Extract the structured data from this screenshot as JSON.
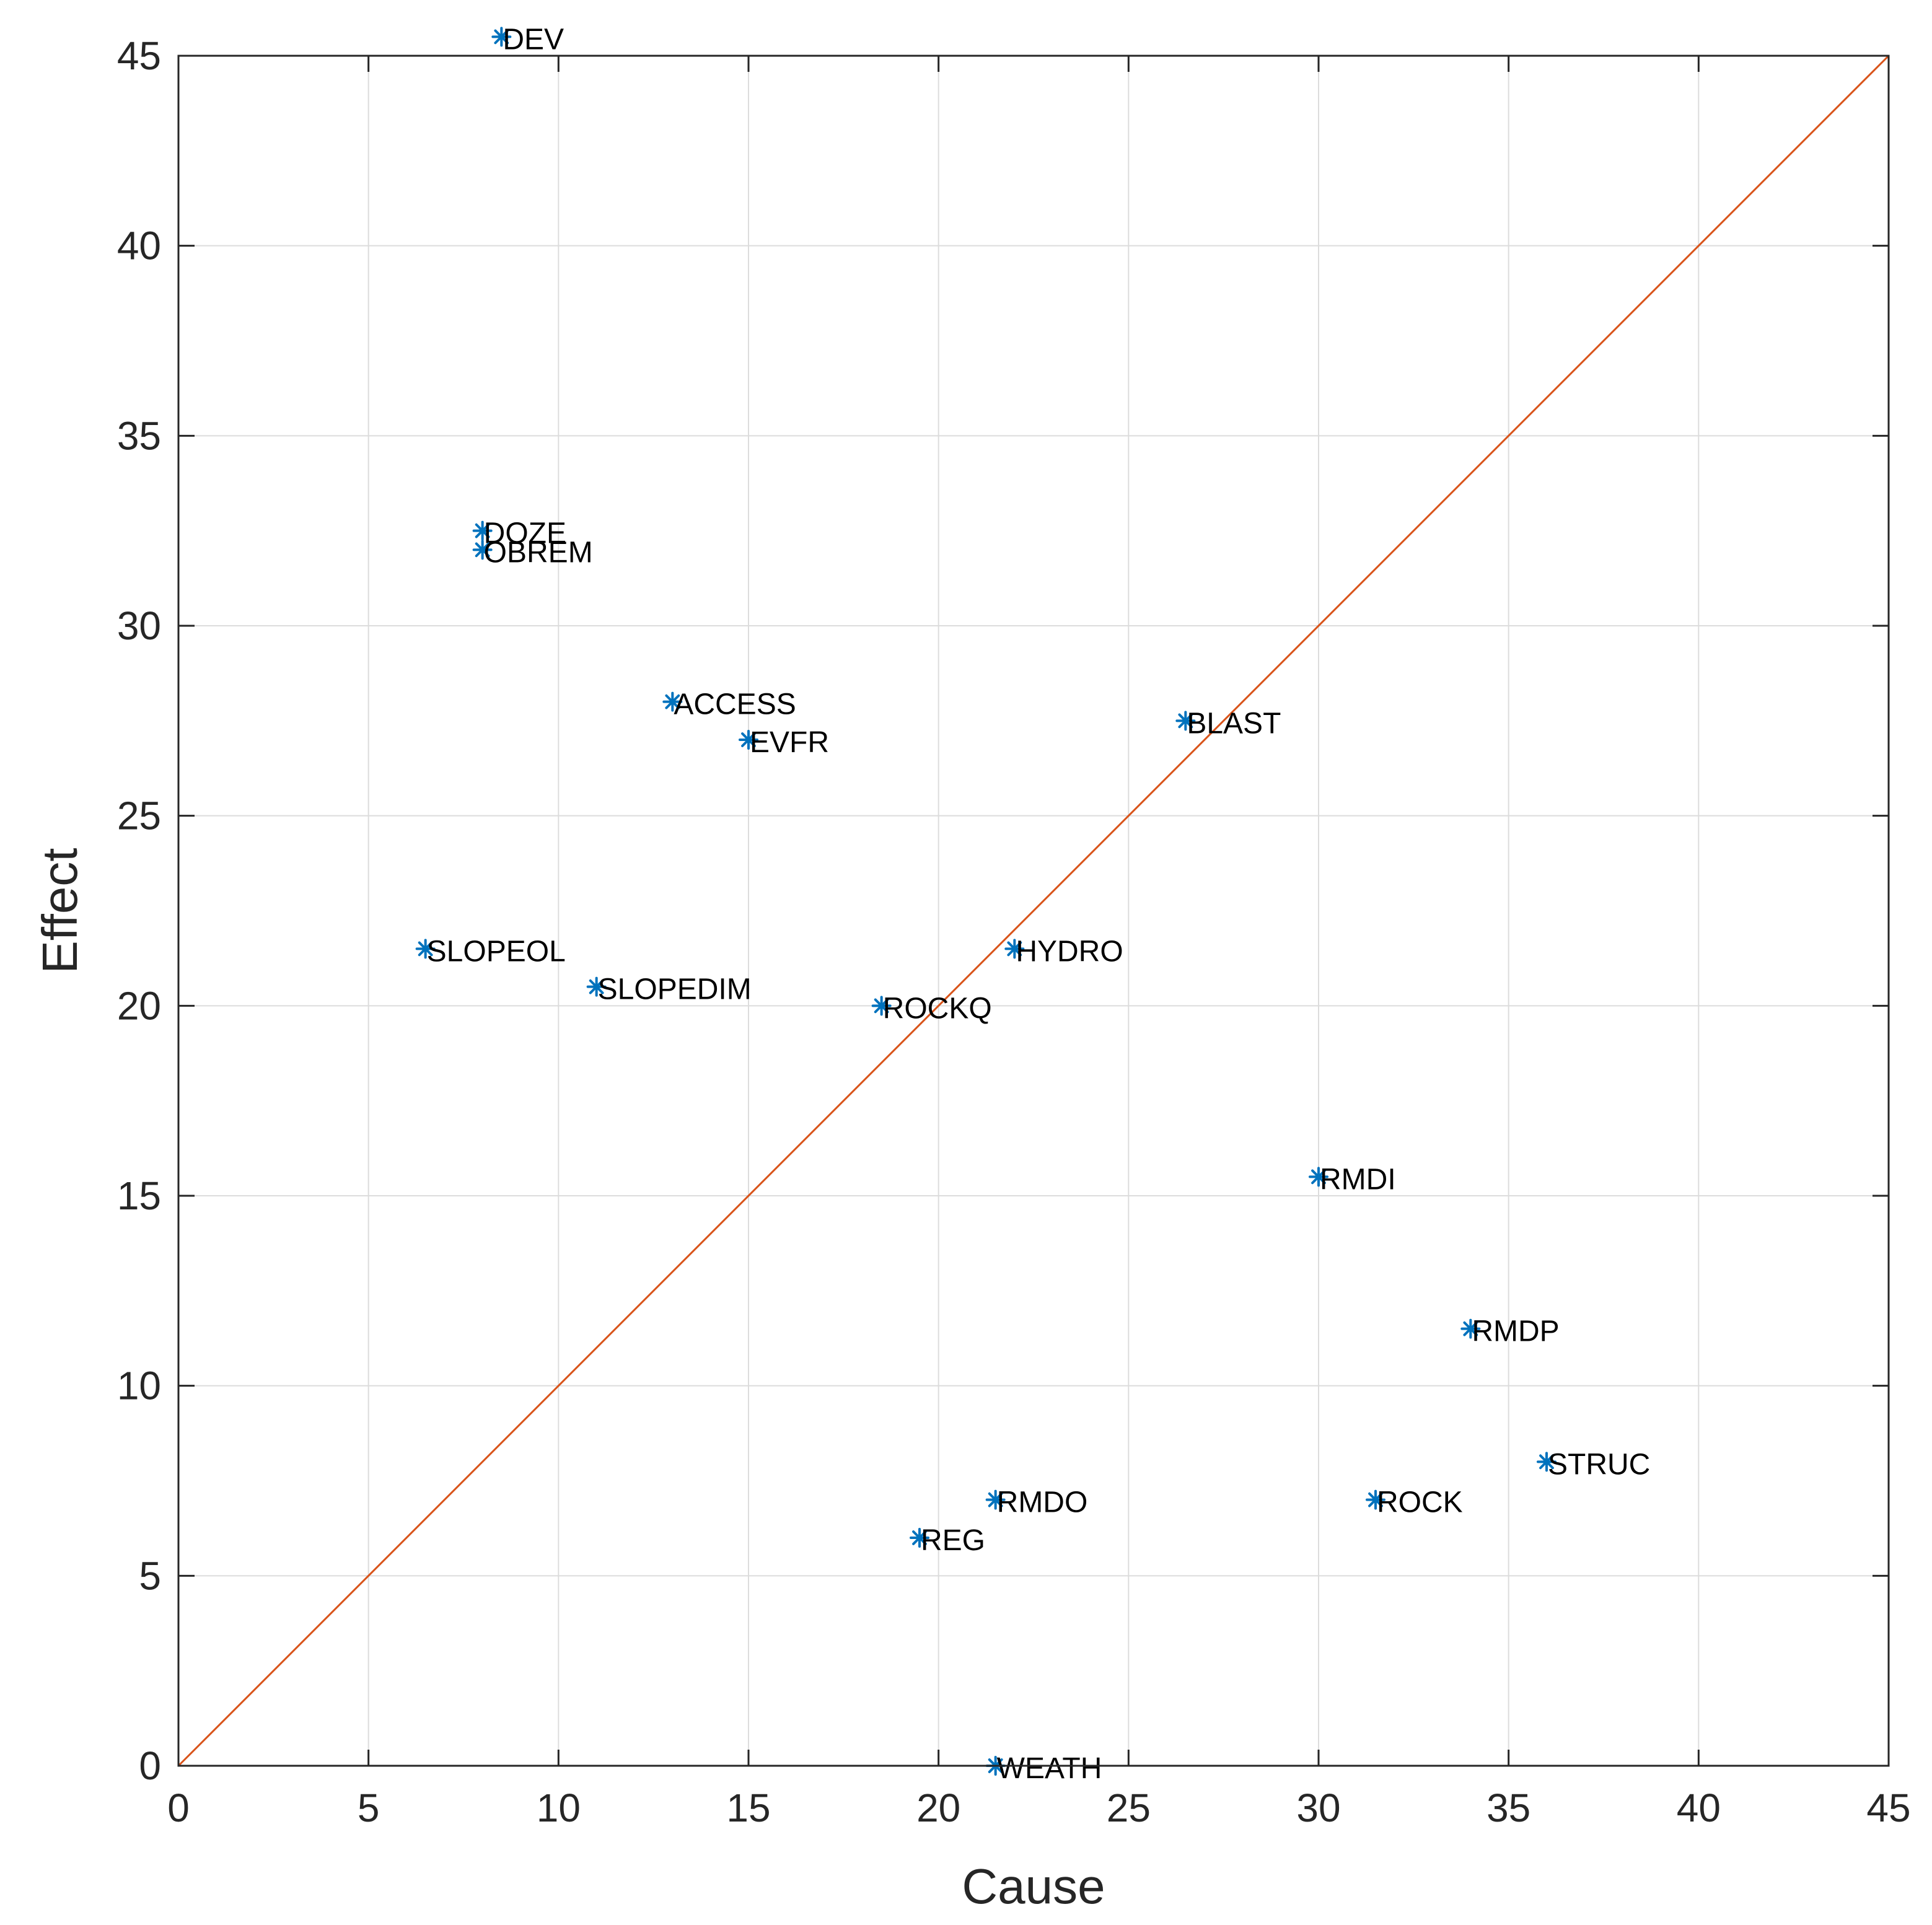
{
  "chart_data": {
    "type": "scatter",
    "title": "",
    "xlabel": "Cause",
    "ylabel": "Effect",
    "xlim": [
      0,
      45
    ],
    "ylim": [
      0,
      45
    ],
    "xticks": [
      0,
      5,
      10,
      15,
      20,
      25,
      30,
      35,
      40,
      45
    ],
    "yticks": [
      0,
      5,
      10,
      15,
      20,
      25,
      30,
      35,
      40,
      45
    ],
    "grid": true,
    "marker": "asterisk",
    "colors": {
      "points": "#0072BD",
      "reference_line": "#D95319",
      "grid": "#dcdcdc",
      "axes": "#262626"
    },
    "points": [
      {
        "label": "DEV",
        "x": 8.5,
        "y": 45.5
      },
      {
        "label": "DOZE",
        "x": 8.0,
        "y": 32.5
      },
      {
        "label": "OBREM",
        "x": 8.0,
        "y": 32.0
      },
      {
        "label": "ACCESS",
        "x": 13.0,
        "y": 28.0
      },
      {
        "label": "EVFR",
        "x": 15.0,
        "y": 27.0
      },
      {
        "label": "BLAST",
        "x": 26.5,
        "y": 27.5
      },
      {
        "label": "SLOPEOL",
        "x": 6.5,
        "y": 21.5
      },
      {
        "label": "SLOPEDIM",
        "x": 11.0,
        "y": 20.5
      },
      {
        "label": "ROCKQ",
        "x": 18.5,
        "y": 20.0
      },
      {
        "label": "HYDRO",
        "x": 22.0,
        "y": 21.5
      },
      {
        "label": "RMDI",
        "x": 30.0,
        "y": 15.5
      },
      {
        "label": "RMDP",
        "x": 34.0,
        "y": 11.5
      },
      {
        "label": "STRUC",
        "x": 36.0,
        "y": 8.0
      },
      {
        "label": "ROCK",
        "x": 31.5,
        "y": 7.0
      },
      {
        "label": "RMDO",
        "x": 21.5,
        "y": 7.0
      },
      {
        "label": "REG",
        "x": 19.5,
        "y": 6.0
      },
      {
        "label": "WEATH",
        "x": 21.5,
        "y": 0.0
      }
    ],
    "reference_line": {
      "x": [
        0,
        45
      ],
      "y": [
        0,
        45
      ]
    }
  }
}
